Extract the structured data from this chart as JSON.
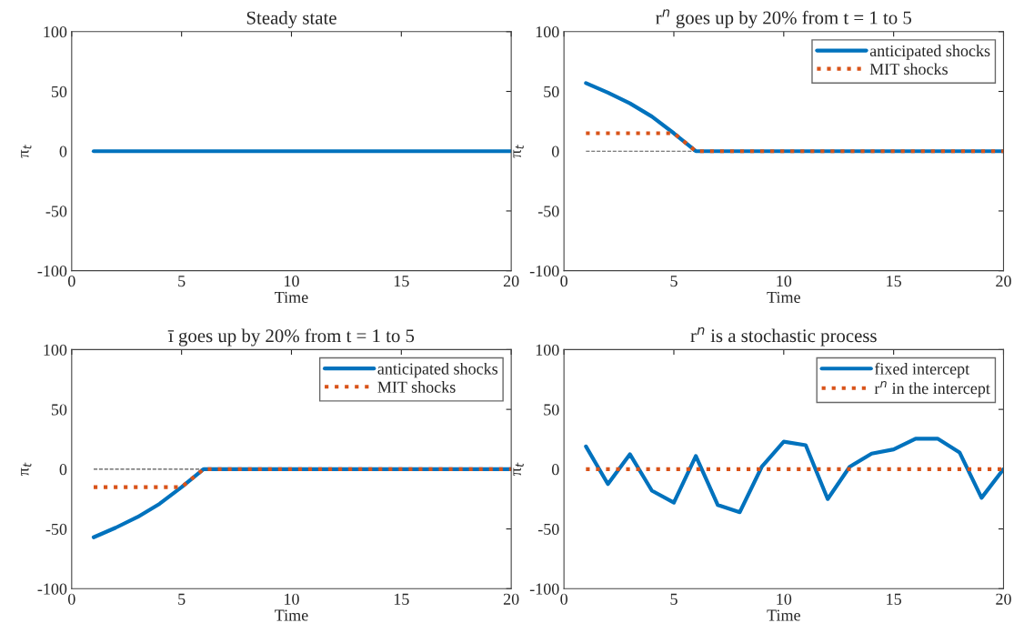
{
  "chart_data": [
    {
      "type": "line",
      "title": "Steady state",
      "xlabel": "Time",
      "ylabel": "π$_{t}$",
      "xlim": [
        0,
        20
      ],
      "ylim": [
        -100,
        100
      ],
      "xticks": [
        0,
        5,
        10,
        15,
        20
      ],
      "yticks": [
        -100,
        -50,
        0,
        50,
        100
      ],
      "grid": false,
      "legend": false,
      "x": [
        1,
        2,
        3,
        4,
        5,
        6,
        7,
        8,
        9,
        10,
        11,
        12,
        13,
        14,
        15,
        16,
        17,
        18,
        19,
        20
      ],
      "series": [
        {
          "color": "#0072bd",
          "line_style": "solid",
          "values": [
            0,
            0,
            0,
            0,
            0,
            0,
            0,
            0,
            0,
            0,
            0,
            0,
            0,
            0,
            0,
            0,
            0,
            0,
            0,
            0
          ]
        }
      ]
    },
    {
      "type": "line",
      "title": "r$^{n}$ goes up by 20% from t = 1 to 5",
      "xlabel": "Time",
      "ylabel": "π$_{t}$",
      "xlim": [
        0,
        20
      ],
      "ylim": [
        -100,
        100
      ],
      "xticks": [
        0,
        5,
        10,
        15,
        20
      ],
      "yticks": [
        -100,
        -50,
        0,
        50,
        100
      ],
      "grid": false,
      "legend": "top right",
      "x": [
        1,
        2,
        3,
        4,
        5,
        6,
        7,
        8,
        9,
        10,
        11,
        12,
        13,
        14,
        15,
        16,
        17,
        18,
        19,
        20
      ],
      "series": [
        {
          "color": "#555555",
          "line_style": "dashed",
          "values": [
            0,
            0,
            0,
            0,
            0,
            0,
            null,
            null,
            null,
            null,
            null,
            null,
            null,
            null,
            null,
            null,
            null,
            null,
            null,
            null
          ]
        },
        {
          "name": "anticipated shocks",
          "color": "#0072bd",
          "line_style": "solid",
          "values": [
            57,
            49,
            40,
            29,
            15,
            0,
            0,
            0,
            0,
            0,
            0,
            0,
            0,
            0,
            0,
            0,
            0,
            0,
            0,
            0
          ]
        },
        {
          "name": "MIT shocks",
          "color": "#d95319",
          "line_style": "dotted",
          "values": [
            15,
            15,
            15,
            15,
            15,
            0,
            0,
            0,
            0,
            0,
            0,
            0,
            0,
            0,
            0,
            0,
            0,
            0,
            0,
            0
          ]
        }
      ]
    },
    {
      "type": "line",
      "title": "ī goes up by 20% from t = 1 to 5",
      "xlabel": "Time",
      "ylabel": "π$_{t}$",
      "xlim": [
        0,
        20
      ],
      "ylim": [
        -100,
        100
      ],
      "xticks": [
        0,
        5,
        10,
        15,
        20
      ],
      "yticks": [
        -100,
        -50,
        0,
        50,
        100
      ],
      "grid": false,
      "legend": "top right",
      "x": [
        1,
        2,
        3,
        4,
        5,
        6,
        7,
        8,
        9,
        10,
        11,
        12,
        13,
        14,
        15,
        16,
        17,
        18,
        19,
        20
      ],
      "series": [
        {
          "color": "#555555",
          "line_style": "dashed",
          "values": [
            0,
            0,
            0,
            0,
            0,
            0,
            null,
            null,
            null,
            null,
            null,
            null,
            null,
            null,
            null,
            null,
            null,
            null,
            null,
            null
          ]
        },
        {
          "name": "anticipated shocks",
          "color": "#0072bd",
          "line_style": "solid",
          "values": [
            -57,
            -49,
            -40,
            -29,
            -15,
            0,
            0,
            0,
            0,
            0,
            0,
            0,
            0,
            0,
            0,
            0,
            0,
            0,
            0,
            0
          ]
        },
        {
          "name": "MIT shocks",
          "color": "#d95319",
          "line_style": "dotted",
          "values": [
            -15,
            -15,
            -15,
            -15,
            -15,
            0,
            0,
            0,
            0,
            0,
            0,
            0,
            0,
            0,
            0,
            0,
            0,
            0,
            0,
            0
          ]
        }
      ]
    },
    {
      "type": "line",
      "title": "r$^{n}$ is a stochastic process",
      "xlabel": "Time",
      "ylabel": "π$_{t}$",
      "xlim": [
        0,
        20
      ],
      "ylim": [
        -100,
        100
      ],
      "xticks": [
        0,
        5,
        10,
        15,
        20
      ],
      "yticks": [
        -100,
        -50,
        0,
        50,
        100
      ],
      "grid": false,
      "legend": "top right",
      "x": [
        1,
        2,
        3,
        4,
        5,
        6,
        7,
        8,
        9,
        10,
        11,
        12,
        13,
        14,
        15,
        16,
        17,
        18,
        19,
        20
      ],
      "series": [
        {
          "name": "fixed intercept",
          "color": "#0072bd",
          "line_style": "solid",
          "values": [
            19,
            -12.5,
            12.5,
            -18,
            -28,
            11,
            -30,
            -36,
            2,
            23,
            20,
            -25,
            2,
            13,
            16.5,
            25.5,
            25.5,
            14,
            -24,
            0
          ]
        },
        {
          "name": "r$^{n}$ in the intercept",
          "color": "#d95319",
          "line_style": "dotted",
          "values": [
            0,
            0,
            0,
            0,
            0,
            0,
            0,
            0,
            0,
            0,
            0,
            0,
            0,
            0,
            0,
            0,
            0,
            0,
            0,
            0
          ]
        }
      ]
    }
  ]
}
